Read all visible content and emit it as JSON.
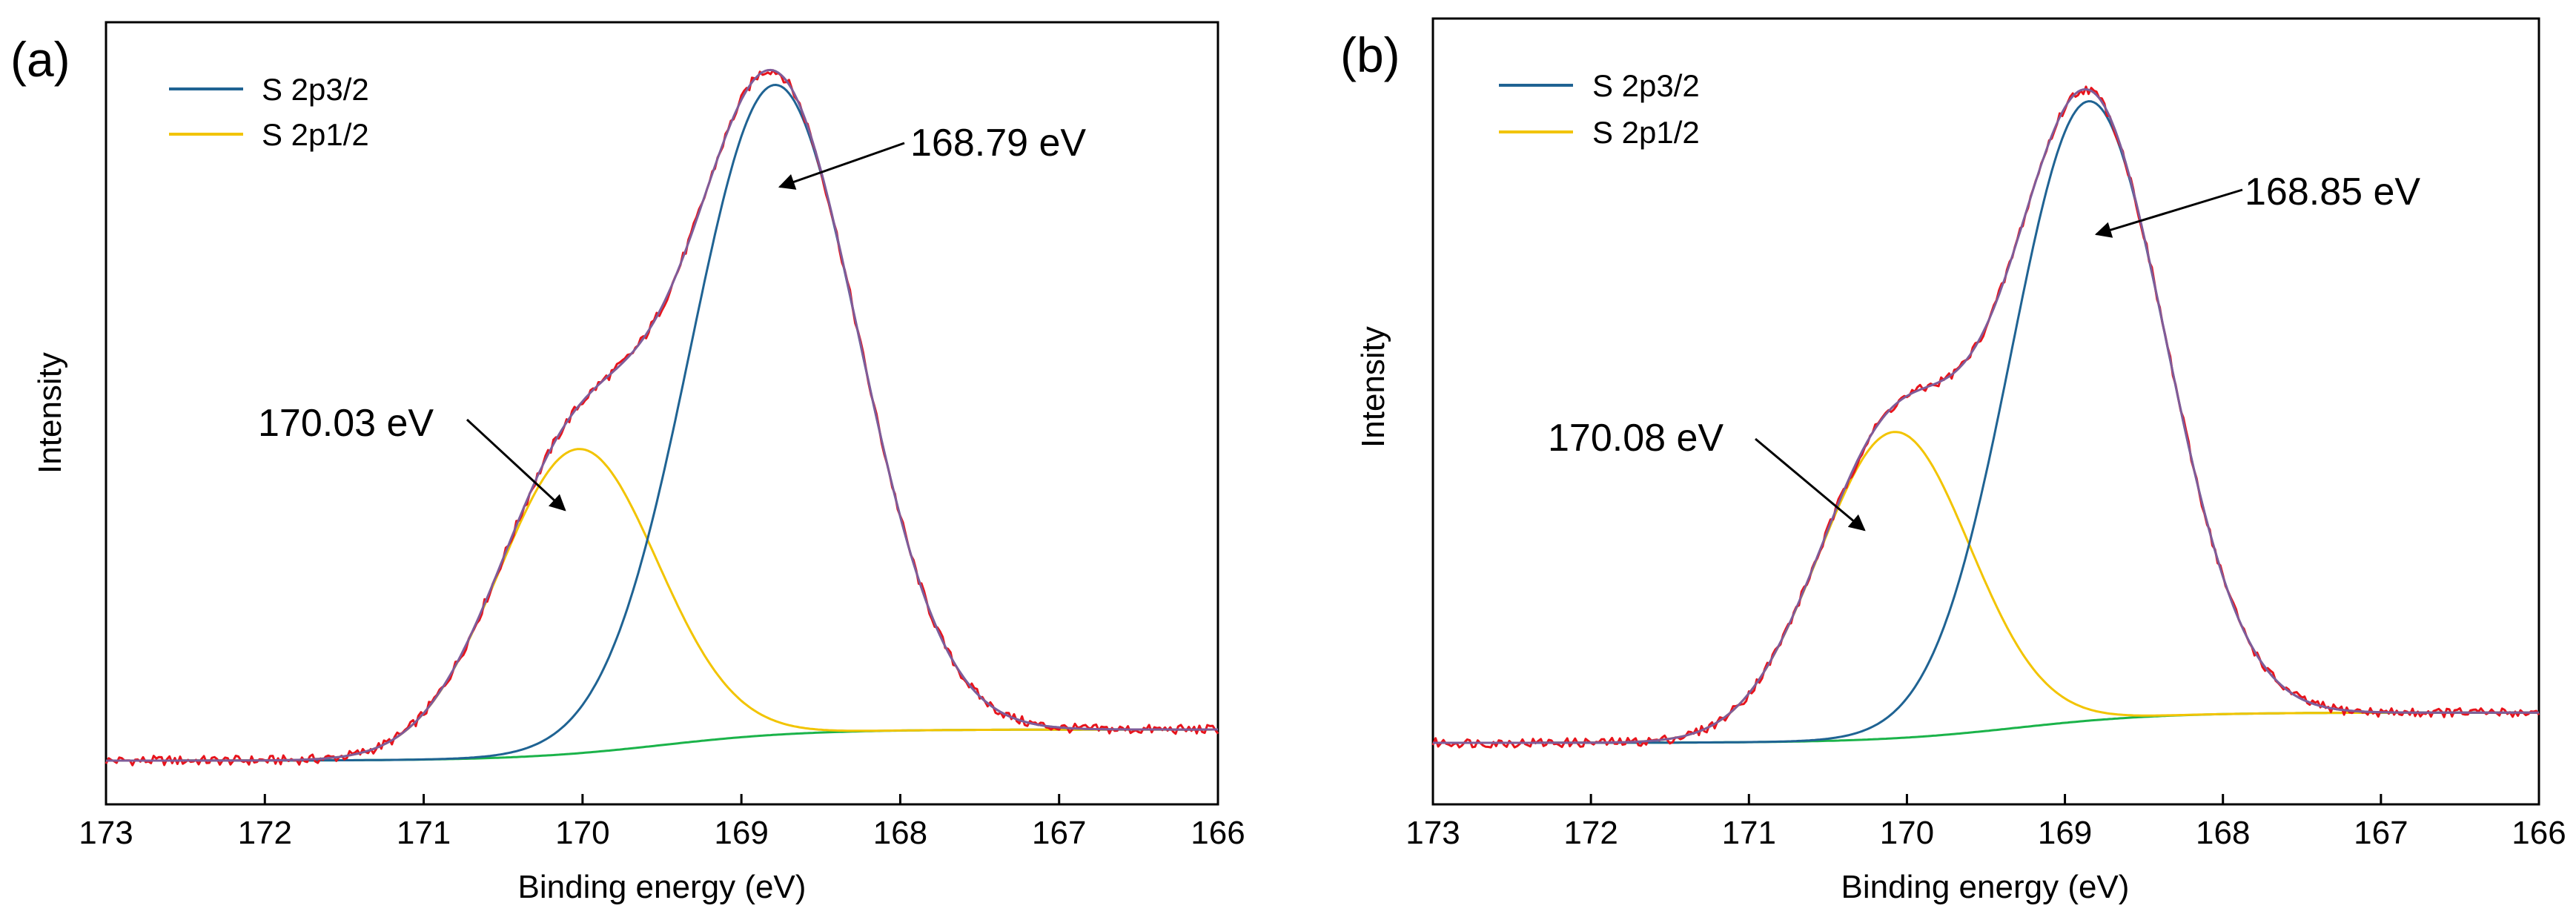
{
  "panels": [
    {
      "panel_label": "(a)",
      "ylabel": "Intensity",
      "xlabel": "Binding energy (eV)",
      "legend": [
        {
          "name": "S 2p3/2",
          "color": "#1f6393"
        },
        {
          "name": "S 2p1/2",
          "color": "#f2c400"
        }
      ],
      "annotations": [
        {
          "text": "168.79 eV"
        },
        {
          "text": "170.03 eV"
        }
      ]
    },
    {
      "panel_label": "(b)",
      "ylabel": "Intensity",
      "xlabel": "Binding energy (eV)",
      "legend": [
        {
          "name": "S 2p3/2",
          "color": "#1f6393"
        },
        {
          "name": "S 2p1/2",
          "color": "#f2c400"
        }
      ],
      "annotations": [
        {
          "text": "168.85 eV"
        },
        {
          "text": "170.08 eV"
        }
      ]
    }
  ],
  "colors": {
    "raw": "#e8141c",
    "envelope": "#7e5c9a",
    "s2p32": "#1f6393",
    "s2p12": "#f2c400",
    "background": "#1bb34a"
  },
  "chart_data": [
    {
      "type": "line",
      "title": "(a)",
      "xlabel": "Binding energy (eV)",
      "ylabel": "Intensity",
      "xlim": [
        173,
        166
      ],
      "xticks": [
        173,
        172,
        171,
        170,
        169,
        168,
        167,
        166
      ],
      "ylim": [
        0,
        1.04
      ],
      "series": [
        {
          "name": "S 2p3/2",
          "type": "gaussian",
          "center": 168.79,
          "amplitude": 0.94,
          "sigma": 0.53
        },
        {
          "name": "S 2p1/2",
          "type": "gaussian",
          "center": 170.03,
          "amplitude": 0.44,
          "sigma": 0.5
        },
        {
          "name": "Background",
          "type": "sigmoid",
          "low": 0.0,
          "high": 0.045,
          "center": 169.5,
          "width": 0.45
        },
        {
          "name": "Envelope",
          "type": "sum"
        },
        {
          "name": "Raw",
          "type": "noisy",
          "noise": 0.007
        }
      ],
      "annotations": [
        {
          "text": "168.79 eV",
          "x": 168.79
        },
        {
          "text": "170.03 eV",
          "x": 170.03
        }
      ]
    },
    {
      "type": "line",
      "title": "(b)",
      "xlabel": "Binding energy (eV)",
      "ylabel": "Intensity",
      "xlim": [
        173,
        166
      ],
      "xticks": [
        173,
        172,
        171,
        170,
        169,
        168,
        167,
        166
      ],
      "ylim": [
        0,
        1.04
      ],
      "series": [
        {
          "name": "S 2p3/2",
          "type": "gaussian",
          "center": 168.85,
          "amplitude": 0.92,
          "sigma": 0.49
        },
        {
          "name": "S 2p1/2",
          "type": "gaussian",
          "center": 170.08,
          "amplitude": 0.455,
          "sigma": 0.48
        },
        {
          "name": "Background",
          "type": "sigmoid",
          "low": 0.0,
          "high": 0.045,
          "center": 169.3,
          "width": 0.45
        },
        {
          "name": "Envelope",
          "type": "sum"
        },
        {
          "name": "Raw",
          "type": "noisy",
          "noise": 0.007
        }
      ],
      "annotations": [
        {
          "text": "168.85 eV",
          "x": 168.85
        },
        {
          "text": "170.08 eV",
          "x": 170.08
        }
      ]
    }
  ]
}
